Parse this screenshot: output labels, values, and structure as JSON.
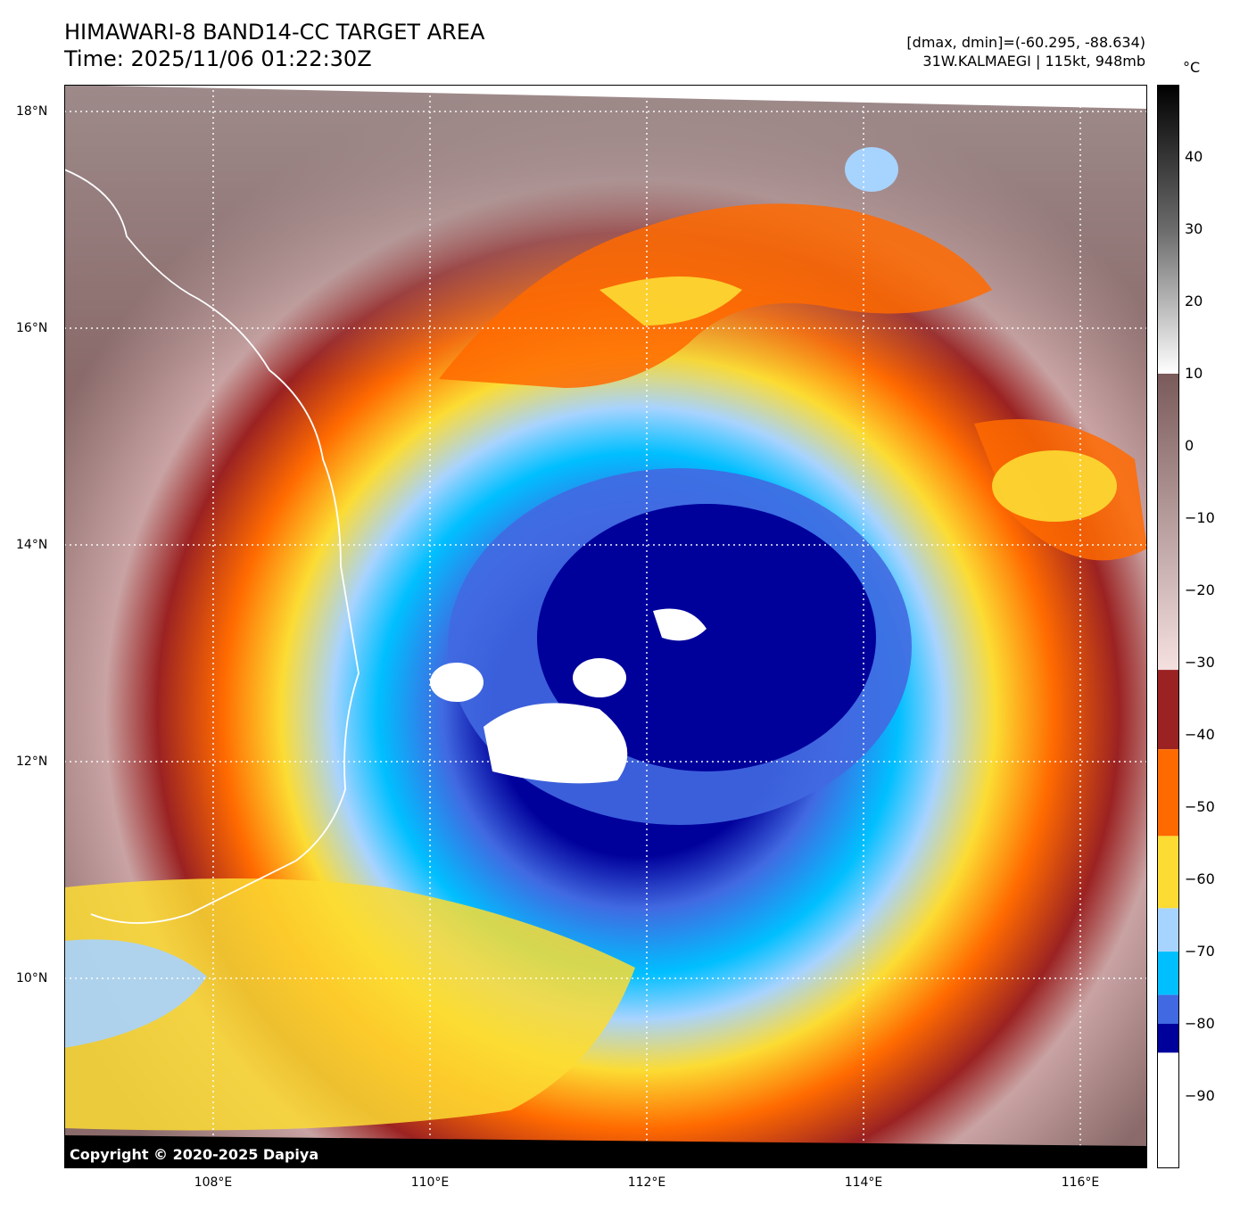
{
  "header": {
    "title_line1": "HIMAWARI-8 BAND14-CC TARGET AREA",
    "title_line2": "Time: 2025/11/06 01:22:30Z",
    "range_text": "[dmax, dmin]=(-60.295, -88.634)",
    "storm_text": "31W.KALMAEGI | 115kt, 948mb"
  },
  "map": {
    "copyright": "Copyright © 2020-2025 Dapiya",
    "lat_labels": [
      "18°N",
      "16°N",
      "14°N",
      "12°N",
      "10°N"
    ],
    "lon_labels": [
      "108°E",
      "110°E",
      "112°E",
      "114°E",
      "116°E"
    ]
  },
  "colorbar": {
    "unit": "°C",
    "ticks": [
      "40",
      "30",
      "20",
      "10",
      "0",
      "−10",
      "−20",
      "−30",
      "−40",
      "−50",
      "−60",
      "−70",
      "−80",
      "−90"
    ],
    "bands": [
      {
        "from": 50,
        "to": 10,
        "colors": [
          "#000000",
          "#6b6b6b",
          "#ffffff"
        ]
      },
      {
        "from": 10,
        "to": -31,
        "colors": [
          "#7a5a5a",
          "#f5e0e0"
        ]
      },
      {
        "from": -31,
        "to": -42,
        "colors": [
          "#9b2222"
        ]
      },
      {
        "from": -42,
        "to": -54,
        "colors": [
          "#ff6a00"
        ]
      },
      {
        "from": -54,
        "to": -64,
        "colors": [
          "#fcdc33"
        ]
      },
      {
        "from": -64,
        "to": -70,
        "colors": [
          "#a7d3ff"
        ]
      },
      {
        "from": -70,
        "to": -76,
        "colors": [
          "#00bfff"
        ]
      },
      {
        "from": -76,
        "to": -80,
        "colors": [
          "#4169e1"
        ]
      },
      {
        "from": -80,
        "to": -84,
        "colors": [
          "#00009b"
        ]
      },
      {
        "from": -84,
        "to": -100,
        "colors": [
          "#ffffff"
        ]
      }
    ]
  }
}
